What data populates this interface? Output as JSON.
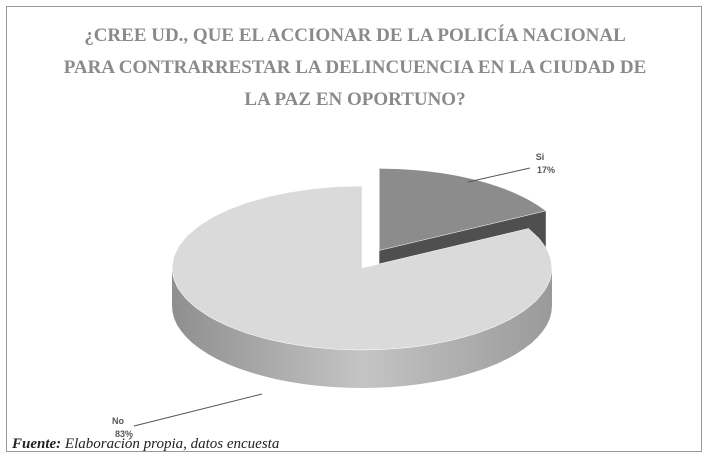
{
  "chart_data": {
    "type": "pie3d",
    "title": [
      "¿CREE UD., QUE EL ACCIONAR DE LA POLICÍA NACIONAL",
      "PARA CONTRARRESTAR LA DELINCUENCIA EN LA CIUDAD DE",
      "LA PAZ EN OPORTUNO?"
    ],
    "categories": [
      "Si",
      "No"
    ],
    "values": [
      17,
      83
    ],
    "value_labels": [
      "17%",
      "83%"
    ],
    "colors": [
      "#8c8c8c",
      "#dadada"
    ],
    "side_colors": [
      "#4f4f4f",
      "#a8a8a8"
    ],
    "exploded": [
      true,
      false
    ]
  },
  "source": {
    "label": "Fuente:",
    "text": "Elaboración propia, datos encuesta"
  }
}
